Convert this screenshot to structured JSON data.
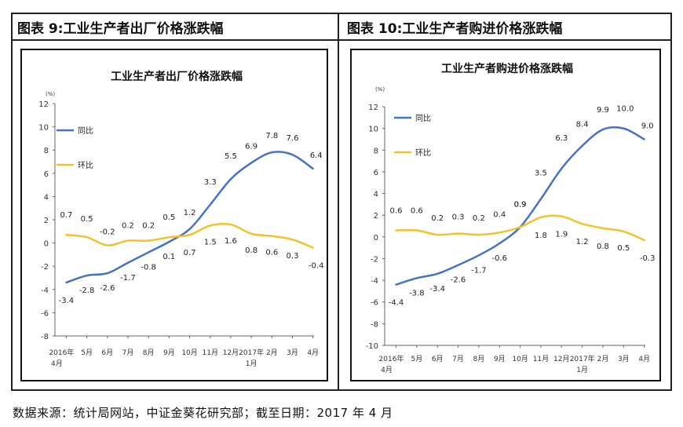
{
  "headers": {
    "left": "图表 9:工业生产者出厂价格涨跌幅",
    "right": "图表 10:工业生产者购进价格涨跌幅"
  },
  "source": "数据来源：统计局网站，中证金葵花研究部；截至日期：2017 年 4 月",
  "colors": {
    "yoy": "#4472C4",
    "mom": "#F2C12E",
    "axis": "#666666"
  },
  "chart_data": [
    {
      "type": "line",
      "title": "工业生产者出厂价格涨跌幅",
      "unit_label": "(%)",
      "categories": [
        [
          "2016年",
          "4月"
        ],
        [
          "5月"
        ],
        [
          "6月"
        ],
        [
          "7月"
        ],
        [
          "8月"
        ],
        [
          "9月"
        ],
        [
          "10月"
        ],
        [
          "11月"
        ],
        [
          "12月"
        ],
        [
          "2017年",
          "1月"
        ],
        [
          "2月"
        ],
        [
          "3月"
        ],
        [
          "4月"
        ]
      ],
      "ylim": [
        -8,
        12
      ],
      "yticks": [
        -8,
        -6,
        -4,
        -2,
        0,
        2,
        4,
        6,
        8,
        10,
        12
      ],
      "series": [
        {
          "name": "同比",
          "values": [
            -3.4,
            -2.8,
            -2.6,
            -1.7,
            -0.8,
            0.1,
            1.2,
            3.3,
            5.5,
            6.9,
            7.8,
            7.6,
            6.4
          ],
          "labels": [
            "-3.4",
            "-2.8",
            "-2.6",
            "-1.7",
            "-0.8",
            "0.1",
            "1.2",
            "3.3",
            "5.5",
            "6.9",
            "7.8",
            "7.6",
            "6.4"
          ]
        },
        {
          "name": "环比",
          "values": [
            0.7,
            0.5,
            -0.2,
            0.2,
            0.2,
            0.5,
            0.7,
            1.5,
            1.6,
            0.8,
            0.6,
            0.3,
            -0.4
          ],
          "labels": [
            "0.7",
            "0.5",
            "-0.2",
            "0.2",
            "0.2",
            "0.5",
            "0.7",
            "1.5",
            "1.6",
            "0.8",
            "0.6",
            "0.3",
            "-0.4"
          ]
        }
      ]
    },
    {
      "type": "line",
      "title": "工业生产者购进价格涨跌幅",
      "unit_label": "(%)",
      "categories": [
        [
          "2016年",
          "4月"
        ],
        [
          "5月"
        ],
        [
          "6月"
        ],
        [
          "7月"
        ],
        [
          "8月"
        ],
        [
          "9月"
        ],
        [
          "10月"
        ],
        [
          "11月"
        ],
        [
          "12月"
        ],
        [
          "2017年",
          "1月"
        ],
        [
          "2月"
        ],
        [
          "3月"
        ],
        [
          "4月"
        ]
      ],
      "ylim": [
        -10,
        12
      ],
      "yticks": [
        -10,
        -8,
        -6,
        -4,
        -2,
        0,
        2,
        4,
        6,
        8,
        10,
        12
      ],
      "series": [
        {
          "name": "同比",
          "values": [
            -4.4,
            -3.8,
            -3.4,
            -2.6,
            -1.7,
            -0.6,
            0.9,
            3.5,
            6.3,
            8.4,
            9.9,
            10.0,
            9.0
          ],
          "labels": [
            "-4.4",
            "-3.8",
            "-3.4",
            "-2.6",
            "-1.7",
            "-0.6",
            "0.9",
            "3.5",
            "6.3",
            "8.4",
            "9.9",
            "10.0",
            "9.0"
          ]
        },
        {
          "name": "环比",
          "values": [
            0.6,
            0.6,
            0.2,
            0.3,
            0.2,
            0.4,
            0.9,
            1.8,
            1.9,
            1.2,
            0.8,
            0.5,
            -0.3
          ],
          "labels": [
            "0.6",
            "0.6",
            "0.2",
            "0.3",
            "0.2",
            "0.4",
            "0.9",
            "1.8",
            "1.9",
            "1.2",
            "0.8",
            "0.5",
            "-0.3"
          ]
        }
      ]
    }
  ]
}
